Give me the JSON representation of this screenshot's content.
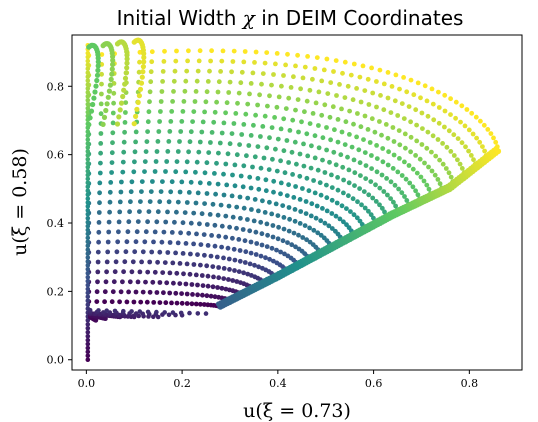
{
  "chart_data": {
    "type": "scatter",
    "title_parts": [
      "Initial Width ",
      "χ",
      " in DEIM Coordinates"
    ],
    "xlabel": "u(ξ = 0.73)",
    "ylabel": "u(ξ = 0.58)",
    "xlim": [
      -0.03,
      0.91
    ],
    "ylim": [
      -0.03,
      0.95
    ],
    "xticks": [
      0.0,
      0.2,
      0.4,
      0.6,
      0.8
    ],
    "yticks": [
      0.0,
      0.2,
      0.4,
      0.6,
      0.8
    ],
    "xtick_labels": [
      "0.0",
      "0.2",
      "0.4",
      "0.6",
      "0.8"
    ],
    "ytick_labels": [
      "0.0",
      "0.2",
      "0.4",
      "0.6",
      "0.8"
    ],
    "colormap": "viridis",
    "colormap_stops": [
      "#440154",
      "#3b528b",
      "#21918c",
      "#5ec962",
      "#fde725"
    ],
    "grid": false,
    "legend": "none",
    "bottom_tail": {
      "x_end": [
        0.02,
        0.04,
        0.07,
        0.1,
        0.15,
        0.2,
        0.25
      ],
      "y": [
        0.125,
        0.13,
        0.135,
        0.135,
        0.135,
        0.14,
        0.145
      ]
    },
    "lower_edge": {
      "x": [
        0.28,
        0.4,
        0.52,
        0.64,
        0.76,
        0.86
      ],
      "y": [
        0.155,
        0.24,
        0.33,
        0.42,
        0.5,
        0.61
      ]
    },
    "top_spikes": [
      {
        "x": 0.005,
        "y_peak": 0.92
      },
      {
        "x": 0.035,
        "y_peak": 0.925
      },
      {
        "x": 0.065,
        "y_peak": 0.93
      },
      {
        "x": 0.1,
        "y_peak": 0.935
      }
    ],
    "tip": {
      "x": 0.86,
      "y": 0.61
    }
  }
}
